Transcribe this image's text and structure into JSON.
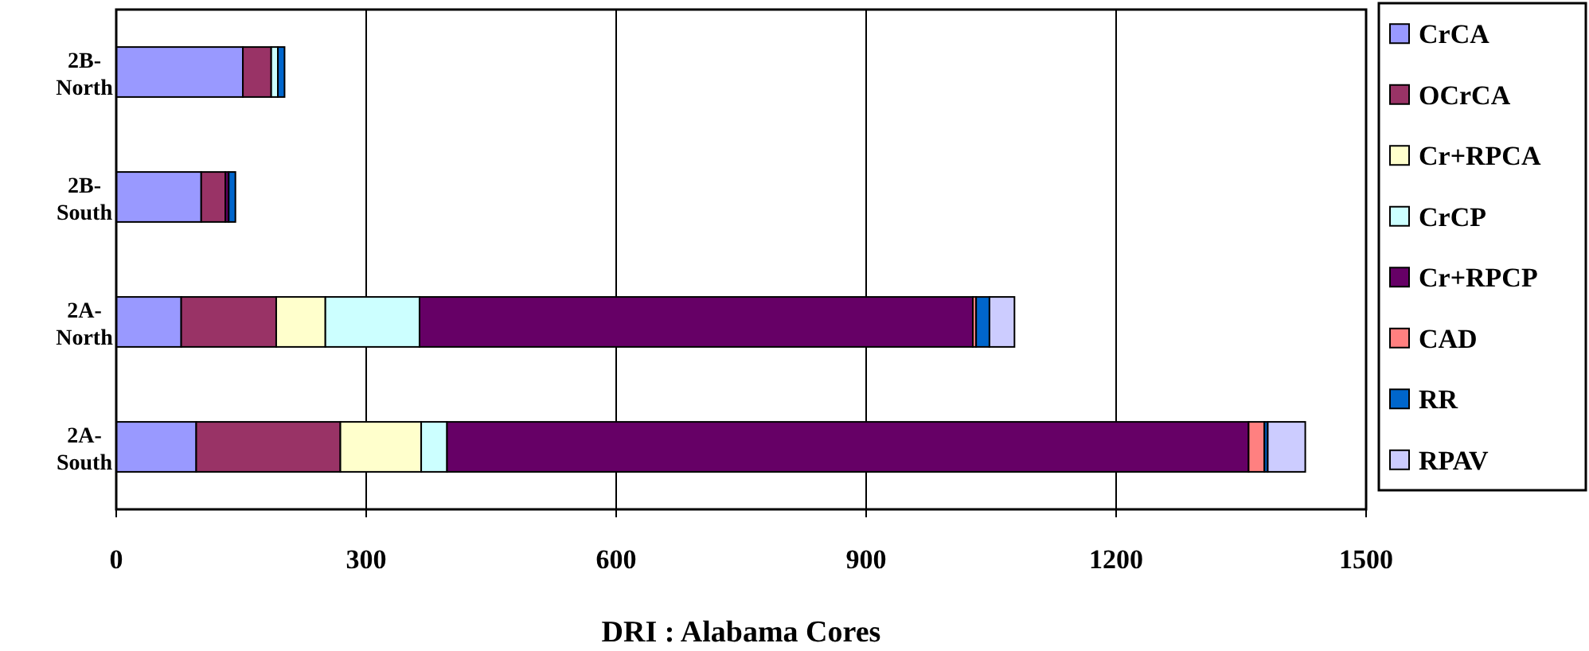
{
  "chart_data": {
    "type": "bar",
    "orientation": "horizontal",
    "stacked": true,
    "xlabel": "DRI : Alabama Cores",
    "categories": [
      "2B-North",
      "2B-South",
      "2A-North",
      "2A-South"
    ],
    "series": [
      {
        "name": "CrCA",
        "color": "#9999ff",
        "values": [
          152,
          102,
          78,
          96
        ]
      },
      {
        "name": "OCrCA",
        "color": "#993366",
        "values": [
          34,
          29,
          114,
          173
        ]
      },
      {
        "name": "Cr+RPCA",
        "color": "#ffffcc",
        "values": [
          0,
          0,
          59,
          97
        ]
      },
      {
        "name": "CrCP",
        "color": "#ccffff",
        "values": [
          8,
          0,
          113,
          31
        ]
      },
      {
        "name": "Cr+RPCP",
        "color": "#660066",
        "values": [
          null,
          4,
          664,
          962
        ]
      },
      {
        "name": "CAD",
        "color": "#ff8080",
        "values": [
          0,
          0,
          4,
          19
        ]
      },
      {
        "name": "RR",
        "color": "#0066cc",
        "values": [
          8,
          8,
          16,
          4
        ]
      },
      {
        "name": "RPAV",
        "color": "#ccccff",
        "values": [
          0,
          0,
          30,
          45
        ]
      }
    ],
    "xlim": [
      0,
      1500
    ],
    "xticks": [
      0,
      300,
      600,
      900,
      1200,
      1500
    ],
    "grid": "x",
    "legend": "right"
  }
}
